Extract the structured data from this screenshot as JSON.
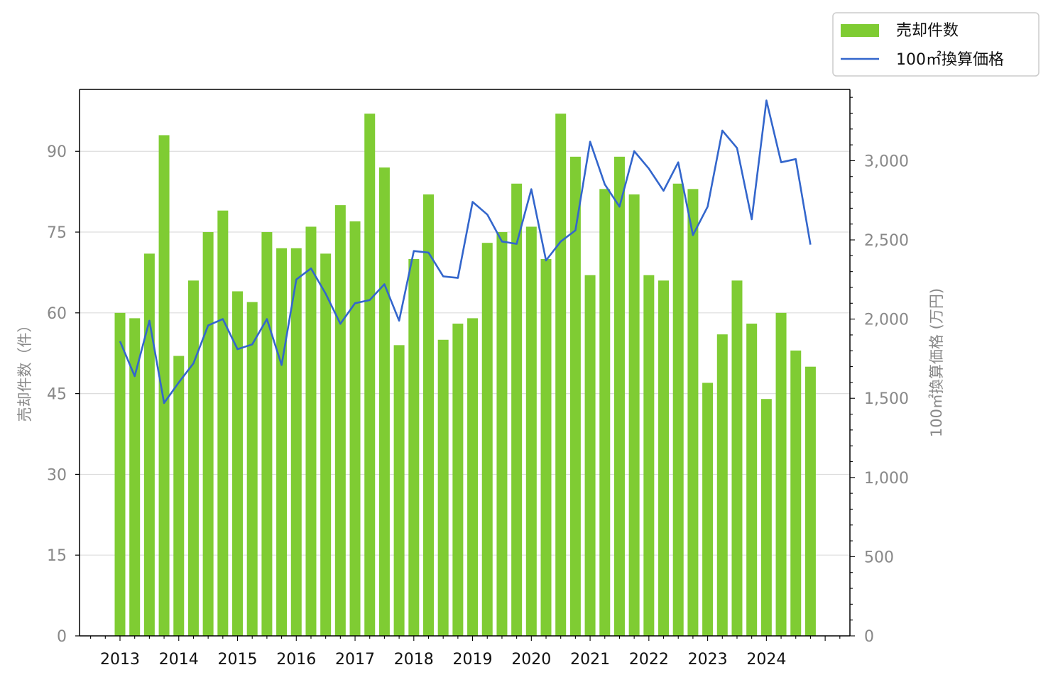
{
  "chart_data": {
    "type": "bar",
    "title": "",
    "ylabel": "売却件数（件）",
    "y2label": "100㎡換算価格 (万円)",
    "ylim": [
      0,
      101.5
    ],
    "y2lim": [
      0,
      3450
    ],
    "yticks": [
      0,
      15,
      30,
      45,
      60,
      75,
      90
    ],
    "y2ticks": [
      "0",
      "500",
      "1,000",
      "1,500",
      "2,000",
      "2,500",
      "3,000"
    ],
    "y2tick_values": [
      0,
      500,
      1000,
      1500,
      2000,
      2500,
      3000
    ],
    "xticks": [
      "2013",
      "2014",
      "2015",
      "2016",
      "2017",
      "2018",
      "2019",
      "2020",
      "2021",
      "2022",
      "2023",
      "2024"
    ],
    "grid": "horizontal",
    "legend_position": "top-right, outside plot",
    "colors": {
      "bars": "#7fcc33",
      "line": "#3366cc"
    },
    "x": [
      "2013Q1",
      "2013Q2",
      "2013Q3",
      "2013Q4",
      "2014Q1",
      "2014Q2",
      "2014Q3",
      "2014Q4",
      "2015Q1",
      "2015Q2",
      "2015Q3",
      "2015Q4",
      "2016Q1",
      "2016Q2",
      "2016Q3",
      "2016Q4",
      "2017Q1",
      "2017Q2",
      "2017Q3",
      "2017Q4",
      "2018Q1",
      "2018Q2",
      "2018Q3",
      "2018Q4",
      "2019Q1",
      "2019Q2",
      "2019Q3",
      "2019Q4",
      "2020Q1",
      "2020Q2",
      "2020Q3",
      "2020Q4",
      "2021Q1",
      "2021Q2",
      "2021Q3",
      "2021Q4",
      "2022Q1",
      "2022Q2",
      "2022Q3",
      "2022Q4",
      "2023Q1",
      "2023Q2",
      "2023Q3",
      "2023Q4",
      "2024Q1",
      "2024Q2",
      "2024Q3",
      "2024Q4"
    ],
    "series": [
      {
        "name": "売却件数",
        "type": "bar",
        "axis": "left",
        "values": [
          60,
          59,
          71,
          93,
          52,
          66,
          75,
          79,
          64,
          62,
          75,
          72,
          72,
          76,
          71,
          80,
          77,
          97,
          87,
          54,
          70,
          82,
          55,
          58,
          59,
          73,
          75,
          84,
          76,
          70,
          97,
          89,
          67,
          83,
          89,
          82,
          67,
          66,
          84,
          83,
          47,
          56,
          66,
          58,
          44,
          60,
          53,
          50
        ]
      },
      {
        "name": "100㎡換算価格",
        "type": "line",
        "axis": "right",
        "values": [
          1860,
          1640,
          1990,
          1470,
          1600,
          1720,
          1960,
          2000,
          1810,
          1840,
          2000,
          1710,
          2250,
          2320,
          2160,
          1970,
          2100,
          2120,
          2220,
          1990,
          2430,
          2420,
          2270,
          2260,
          2740,
          2660,
          2490,
          2475,
          2820,
          2370,
          2490,
          2560,
          3120,
          2850,
          2710,
          3060,
          2950,
          2810,
          2990,
          2530,
          2710,
          3190,
          3080,
          2630,
          3380,
          2990,
          3010,
          2470
        ]
      }
    ]
  }
}
